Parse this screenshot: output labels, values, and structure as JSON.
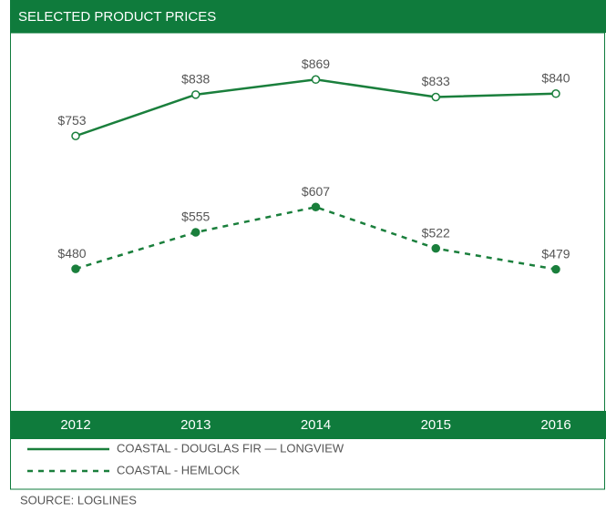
{
  "chart_data": {
    "type": "line",
    "title": "SELECTED PRODUCT PRICES",
    "categories": [
      "2012",
      "2013",
      "2014",
      "2015",
      "2016"
    ],
    "series": [
      {
        "name": "COASTAL - DOUGLAS FIR — LONGVIEW",
        "color": "#1a7f3c",
        "line_style": "solid",
        "marker": "open",
        "values": [
          753,
          838,
          869,
          833,
          840
        ],
        "value_labels": [
          "$753",
          "$838",
          "$869",
          "$833",
          "$840"
        ]
      },
      {
        "name": "COASTAL - HEMLOCK",
        "color": "#1a7f3c",
        "line_style": "dashed",
        "marker": "filled",
        "values": [
          480,
          555,
          607,
          522,
          479
        ],
        "value_labels": [
          "$480",
          "$555",
          "$607",
          "$522",
          "$479"
        ]
      }
    ],
    "ylim": [
      190,
      965
    ],
    "source": "SOURCE: LOGLINES"
  }
}
